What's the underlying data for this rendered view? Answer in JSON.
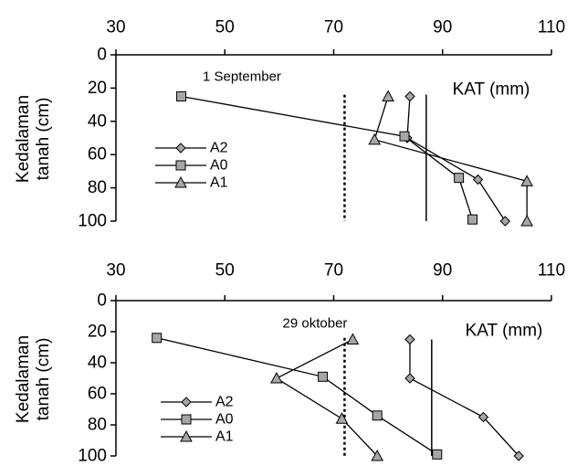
{
  "chart_data": [
    {
      "type": "line",
      "title": "1 September",
      "xlabel": "",
      "ylabel": "Kedalaman tanah (cm)",
      "xlim": [
        30,
        110
      ],
      "ylim": [
        0,
        100
      ],
      "x_ticks": [
        "30",
        "50",
        "70",
        "90",
        "110"
      ],
      "y_ticks": [
        "0",
        "20",
        "40",
        "60",
        "80",
        "100"
      ],
      "annotation": "KAT (mm)",
      "dotted_x": 72,
      "solid_x": 87,
      "legend": [
        "A2",
        "A0",
        "A1"
      ],
      "series": [
        {
          "name": "A2",
          "marker": "diamond",
          "x": [
            84,
            83.5,
            96.5,
            101.5
          ],
          "y": [
            25,
            50,
            75,
            100
          ]
        },
        {
          "name": "A0",
          "marker": "square",
          "x": [
            42,
            83,
            93,
            95.5
          ],
          "y": [
            25,
            49,
            74,
            99
          ]
        },
        {
          "name": "A1",
          "marker": "triangle",
          "x": [
            80,
            77.5,
            105.5,
            105.5
          ],
          "y": [
            25,
            51,
            76,
            100
          ]
        }
      ]
    },
    {
      "type": "line",
      "title": "29 oktober",
      "xlabel": "",
      "ylabel": "Kedalaman tanah (cm)",
      "xlim": [
        30,
        110
      ],
      "ylim": [
        0,
        100
      ],
      "x_ticks": [
        "30",
        "50",
        "70",
        "90",
        "110"
      ],
      "y_ticks": [
        "0",
        "20",
        "40",
        "60",
        "80",
        "100"
      ],
      "annotation": "KAT (mm)",
      "dotted_x": 72,
      "solid_x": 88,
      "legend": [
        "A2",
        "A0",
        "A1"
      ],
      "series": [
        {
          "name": "A2",
          "marker": "diamond",
          "x": [
            84,
            84,
            97.5,
            104
          ],
          "y": [
            25,
            50,
            75,
            100
          ]
        },
        {
          "name": "A0",
          "marker": "square",
          "x": [
            37.5,
            68,
            78,
            89
          ],
          "y": [
            24,
            49,
            74,
            99
          ]
        },
        {
          "name": "A1",
          "marker": "triangle",
          "x": [
            73.5,
            59.5,
            71.5,
            78
          ],
          "y": [
            25,
            50,
            76,
            100
          ]
        }
      ]
    }
  ]
}
